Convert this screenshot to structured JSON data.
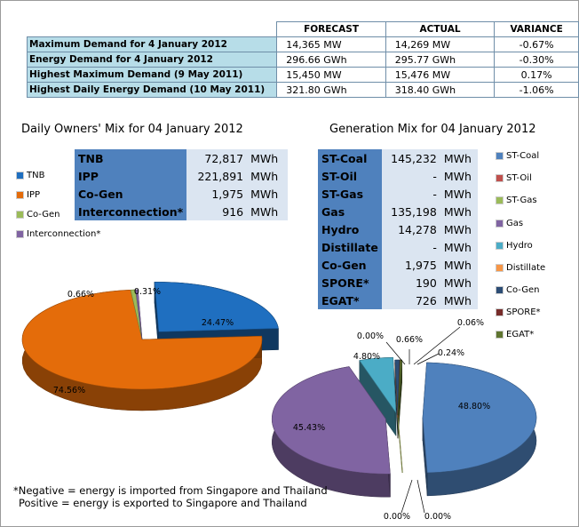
{
  "summary": {
    "headers": [
      "",
      "FORECAST",
      "ACTUAL",
      "VARIANCE"
    ],
    "rows": [
      {
        "label": "Maximum Demand for 4 January 2012",
        "forecast": "14,365  MW",
        "actual": "14,269  MW",
        "variance": "-0.67%"
      },
      {
        "label": "Energy Demand for 4 January 2012",
        "forecast": "296.66  GWh",
        "actual": "295.77  GWh",
        "variance": "-0.30%"
      },
      {
        "label": "Highest Maximum Demand (9 May 2011)",
        "forecast": "15,450  MW",
        "actual": "15,476  MW",
        "variance": "0.17%"
      },
      {
        "label": "Highest Daily Energy Demand (10 May 2011)",
        "forecast": "321.80  GWh",
        "actual": "318.40  GWh",
        "variance": "-1.06%"
      }
    ]
  },
  "owners": {
    "title": "Daily Owners' Mix for 04 January 2012",
    "rows": [
      {
        "name": "TNB",
        "value": "72,817",
        "unit": "MWh"
      },
      {
        "name": "IPP",
        "value": "221,891",
        "unit": "MWh"
      },
      {
        "name": "Co-Gen",
        "value": "1,975",
        "unit": "MWh"
      },
      {
        "name": "Interconnection*",
        "value": "916",
        "unit": "MWh"
      }
    ],
    "legend": [
      {
        "name": "TNB",
        "color": "#1f6fc0"
      },
      {
        "name": "IPP",
        "color": "#e46c0a"
      },
      {
        "name": "Co-Gen",
        "color": "#9bbb59"
      },
      {
        "name": "Interconnection*",
        "color": "#8064a2"
      }
    ]
  },
  "generation": {
    "title": "Generation Mix for 04 January 2012",
    "rows": [
      {
        "name": "ST-Coal",
        "value": "145,232",
        "unit": "MWh"
      },
      {
        "name": "ST-Oil",
        "value": "-",
        "unit": "MWh"
      },
      {
        "name": "ST-Gas",
        "value": "-",
        "unit": "MWh"
      },
      {
        "name": "Gas",
        "value": "135,198",
        "unit": "MWh"
      },
      {
        "name": "Hydro",
        "value": "14,278",
        "unit": "MWh"
      },
      {
        "name": "Distillate",
        "value": "-",
        "unit": "MWh"
      },
      {
        "name": "Co-Gen",
        "value": "1,975",
        "unit": "MWh"
      },
      {
        "name": "SPORE*",
        "value": "190",
        "unit": "MWh"
      },
      {
        "name": "EGAT*",
        "value": "726",
        "unit": "MWh"
      }
    ],
    "legend": [
      {
        "name": "ST-Coal",
        "color": "#4f81bd"
      },
      {
        "name": "ST-Oil",
        "color": "#c0504d"
      },
      {
        "name": "ST-Gas",
        "color": "#9bbb59"
      },
      {
        "name": "Gas",
        "color": "#8064a2"
      },
      {
        "name": "Hydro",
        "color": "#4bacc6"
      },
      {
        "name": "Distillate",
        "color": "#f79646"
      },
      {
        "name": "Co-Gen",
        "color": "#2c4d75"
      },
      {
        "name": "SPORE*",
        "color": "#772c2a"
      },
      {
        "name": "EGAT*",
        "color": "#5f7530"
      }
    ]
  },
  "note": {
    "line1": "*Negative = energy is imported from Singapore and Thailand",
    "line2": "Positive = energy is exported to Singapore and Thailand"
  },
  "chart_data": [
    {
      "type": "pie",
      "title": "Daily Owners' Mix for 04 January 2012",
      "categories": [
        "TNB",
        "IPP",
        "Co-Gen",
        "Interconnection*"
      ],
      "values": [
        24.47,
        74.56,
        0.66,
        0.31
      ],
      "labels": [
        "24.47%",
        "74.56%",
        "0.66%",
        "0.31%"
      ],
      "colors": [
        "#1f6fc0",
        "#e46c0a",
        "#9bbb59",
        "#8064a2"
      ],
      "legend": "left"
    },
    {
      "type": "pie",
      "title": "Generation Mix for 04 January 2012",
      "categories": [
        "ST-Coal",
        "ST-Oil",
        "ST-Gas",
        "Gas",
        "Hydro",
        "Distillate",
        "Co-Gen",
        "SPORE*",
        "EGAT*"
      ],
      "values": [
        48.8,
        0.0,
        0.0,
        45.43,
        4.8,
        0.0,
        0.66,
        0.06,
        0.24
      ],
      "labels": [
        "48.80%",
        "0.00%",
        "0.00%",
        "45.43%",
        "4.80%",
        "0.00%",
        "0.66%",
        "0.06%",
        "0.24%"
      ],
      "colors": [
        "#4f81bd",
        "#c0504d",
        "#9bbb59",
        "#8064a2",
        "#4bacc6",
        "#f79646",
        "#2c4d75",
        "#772c2a",
        "#5f7530"
      ],
      "legend": "right"
    }
  ]
}
